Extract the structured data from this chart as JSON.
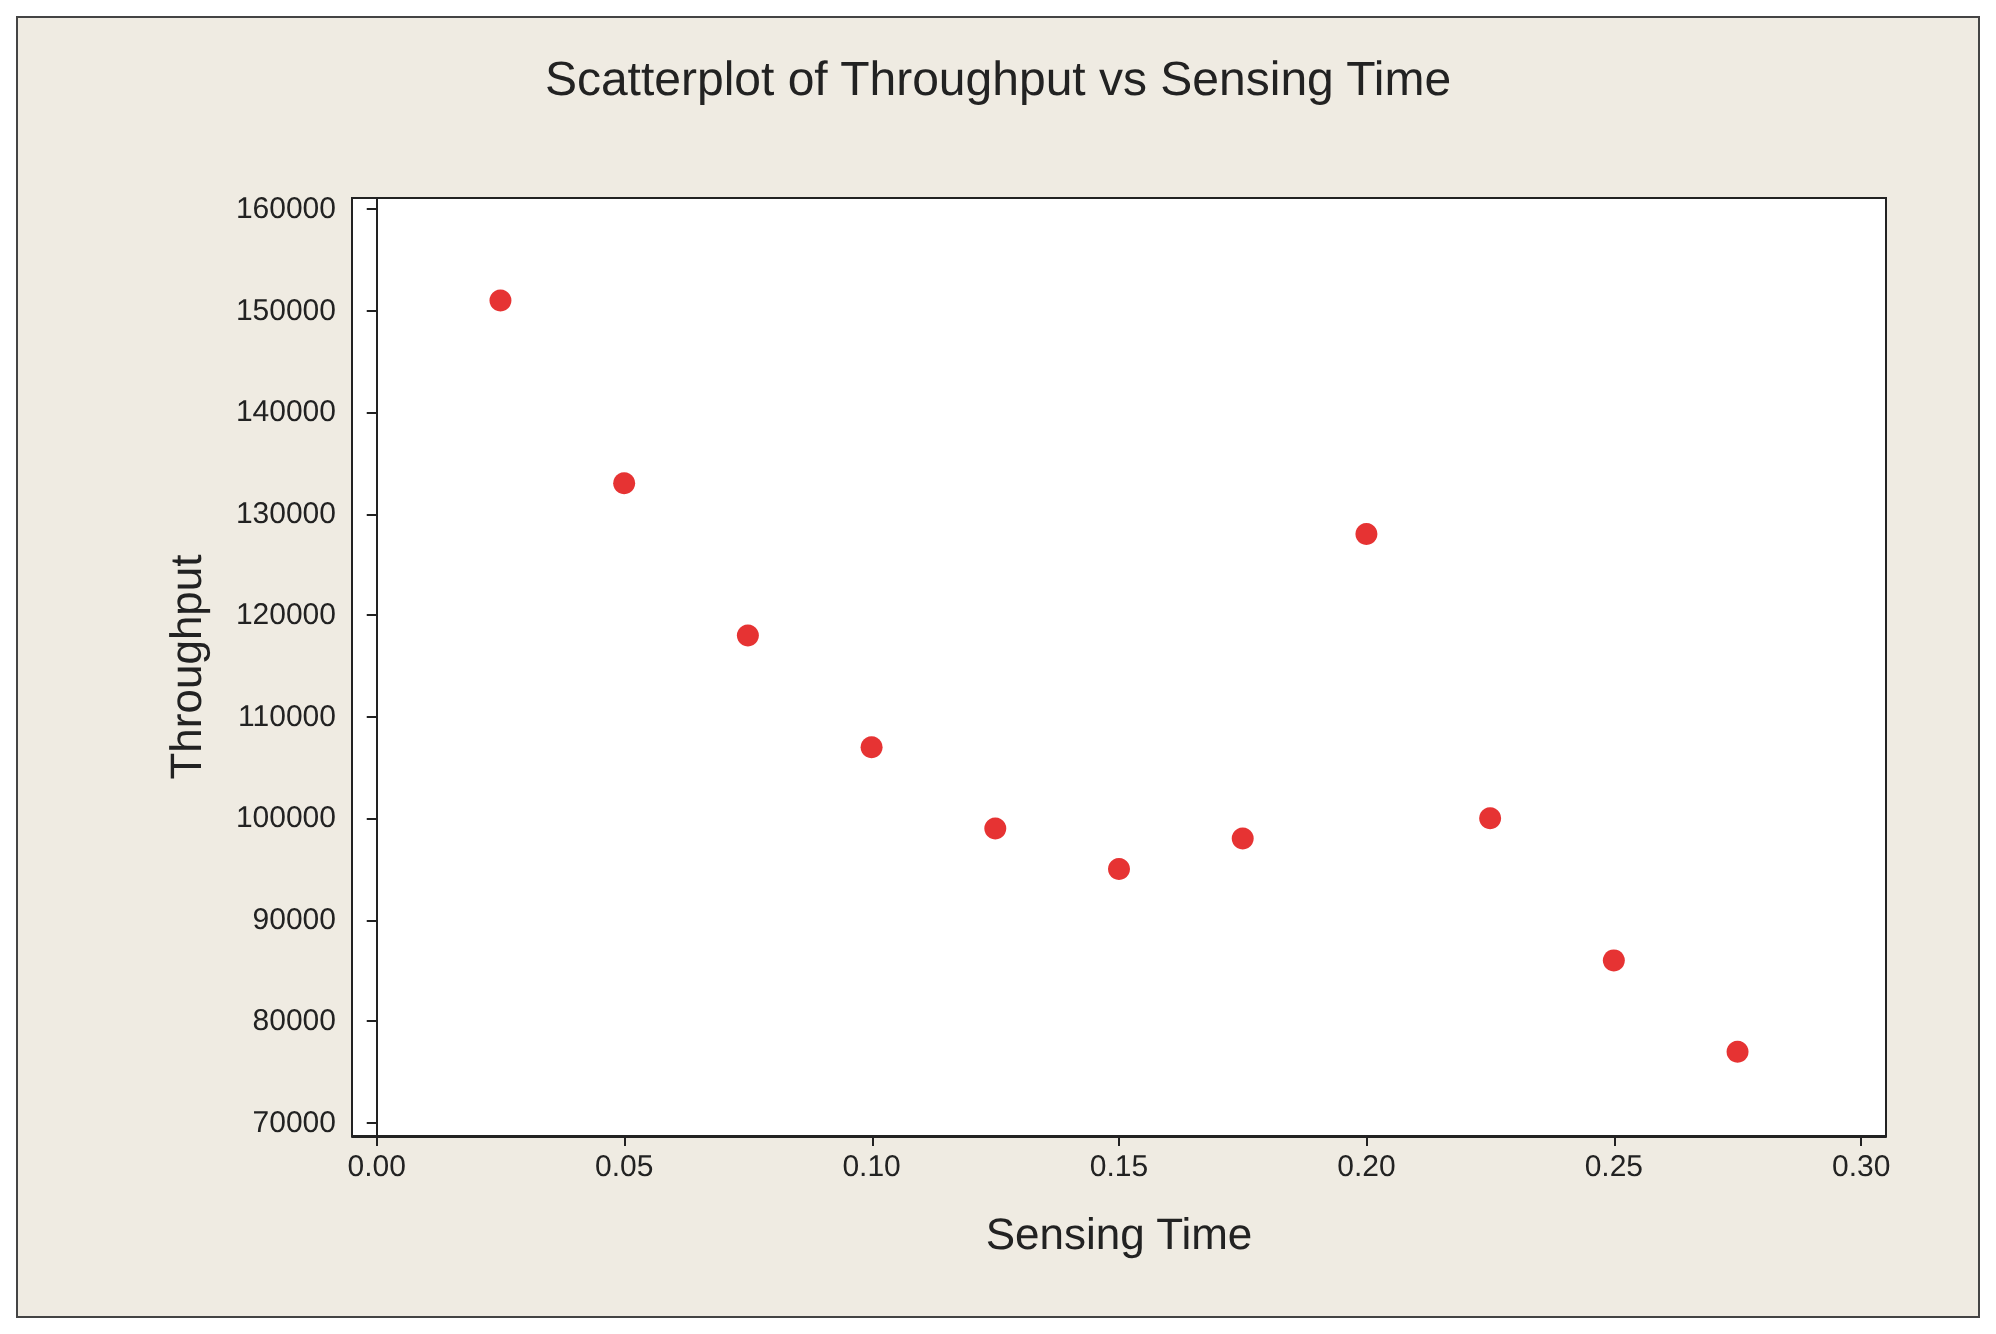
{
  "chart_data": {
    "type": "scatter",
    "title": "Scatterplot of Throughput vs Sensing Time",
    "xlabel": "Sensing Time",
    "ylabel": "Throughput",
    "x": [
      0.025,
      0.05,
      0.075,
      0.1,
      0.125,
      0.15,
      0.175,
      0.2,
      0.225,
      0.25,
      0.275
    ],
    "series": [
      {
        "color": "#e00000",
        "values": [
          151000,
          133000,
          118000,
          107000,
          99000,
          95000,
          98000,
          128000,
          100000,
          86000,
          77000
        ]
      }
    ],
    "xlim": [
      -0.005,
      0.305
    ],
    "xticks": [
      {
        "value": 0,
        "label": "0.00"
      },
      {
        "value": 0.05,
        "label": "0.05"
      },
      {
        "value": 0.1,
        "label": "0.10"
      },
      {
        "value": 0.15,
        "label": "0.15"
      },
      {
        "value": 0.2,
        "label": "0.20"
      },
      {
        "value": 0.25,
        "label": "0.25"
      },
      {
        "value": 0.3,
        "label": "0.30"
      }
    ],
    "ylim": [
      68700,
      161100
    ],
    "yticks": [
      70000,
      80000,
      90000,
      100000,
      110000,
      120000,
      130000,
      140000,
      150000,
      160000
    ],
    "marker": "circle"
  }
}
